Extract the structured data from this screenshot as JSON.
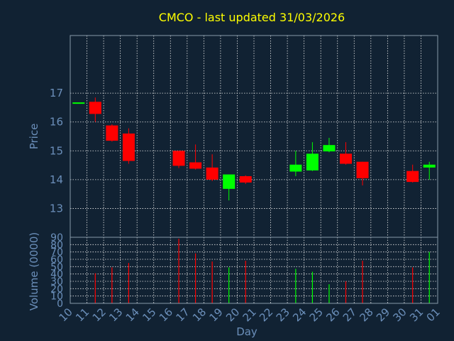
{
  "chart_data": {
    "type": "candlestick",
    "title": "CMCO - last updated 31/03/2026",
    "price_ylabel": "Price",
    "volume_ylabel": "Volume (0000)",
    "xlabel": "Day",
    "price_yticks": [
      13,
      14,
      15,
      16,
      17
    ],
    "price_ylim": [
      12,
      19
    ],
    "volume_yticks": [
      0,
      10,
      20,
      30,
      40,
      50,
      60,
      70,
      80,
      90
    ],
    "volume_ylim": [
      0,
      90
    ],
    "x_ticks": [
      "10",
      "11",
      "12",
      "13",
      "14",
      "15",
      "16",
      "17",
      "18",
      "19",
      "20",
      "21",
      "22",
      "23",
      "24",
      "25",
      "26",
      "27",
      "28",
      "29",
      "30",
      "31",
      "01"
    ],
    "grid": true,
    "colors": {
      "background": "#112233",
      "axis": "#8899aa",
      "grid": "#e8e8e8",
      "up": "#00ff00",
      "down": "#ff0000",
      "title": "#ffff00",
      "text": "#6b8fba"
    },
    "candles": [
      {
        "day": 10,
        "open": 16.68,
        "high": 16.68,
        "low": 16.68,
        "close": 16.68,
        "volume": 0
      },
      {
        "day": 11,
        "open": 16.7,
        "high": 16.85,
        "low": 16.0,
        "close": 16.28,
        "volume": 41
      },
      {
        "day": 12,
        "open": 15.88,
        "high": 15.92,
        "low": 15.32,
        "close": 15.35,
        "volume": 49
      },
      {
        "day": 13,
        "open": 15.6,
        "high": 15.78,
        "low": 14.55,
        "close": 14.65,
        "volume": 55
      },
      {
        "day": 16,
        "open": 15.0,
        "high": 15.0,
        "low": 14.4,
        "close": 14.48,
        "volume": 88
      },
      {
        "day": 17,
        "open": 14.6,
        "high": 15.22,
        "low": 14.35,
        "close": 14.38,
        "volume": 68
      },
      {
        "day": 18,
        "open": 14.42,
        "high": 14.88,
        "low": 13.95,
        "close": 14.0,
        "volume": 57
      },
      {
        "day": 19,
        "open": 13.68,
        "high": 14.18,
        "low": 13.28,
        "close": 14.18,
        "volume": 49
      },
      {
        "day": 20,
        "open": 14.12,
        "high": 14.15,
        "low": 13.85,
        "close": 13.9,
        "volume": 58
      },
      {
        "day": 23,
        "open": 14.28,
        "high": 15.0,
        "low": 14.12,
        "close": 14.52,
        "volume": 47
      },
      {
        "day": 24,
        "open": 14.32,
        "high": 15.3,
        "low": 14.3,
        "close": 14.9,
        "volume": 43
      },
      {
        "day": 25,
        "open": 14.98,
        "high": 15.45,
        "low": 14.95,
        "close": 15.2,
        "volume": 26
      },
      {
        "day": 26,
        "open": 14.9,
        "high": 15.3,
        "low": 14.52,
        "close": 14.55,
        "volume": 30
      },
      {
        "day": 27,
        "open": 14.62,
        "high": 14.62,
        "low": 13.8,
        "close": 14.05,
        "volume": 58
      },
      {
        "day": 30,
        "open": 14.3,
        "high": 14.52,
        "low": 13.9,
        "close": 13.92,
        "volume": 49
      },
      {
        "day": 31,
        "open": 14.42,
        "high": 14.62,
        "low": 14.0,
        "close": 14.52,
        "volume": 70
      }
    ]
  }
}
